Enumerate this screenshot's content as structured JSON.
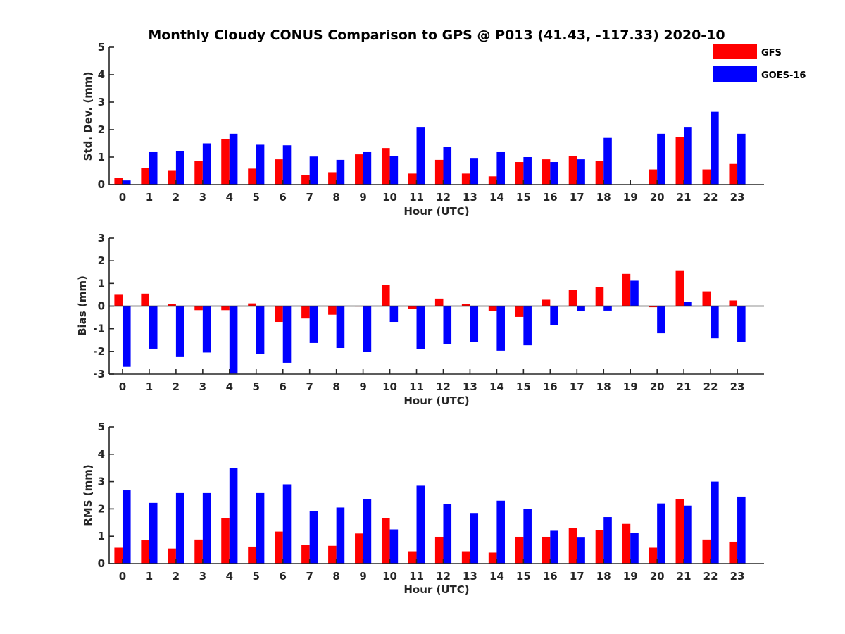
{
  "figure": {
    "title": "Monthly Cloudy CONUS Comparison to GPS @ P013 (41.43, -117.33) 2020-10"
  },
  "legend": {
    "placement": "top-right",
    "items": [
      {
        "label": "GFS",
        "color": "#ff0000"
      },
      {
        "label": "GOES-16",
        "color": "#0000ff"
      }
    ]
  },
  "chart_data": [
    {
      "type": "bar",
      "xlabel": "Hour (UTC)",
      "ylabel": "Std. Dev. (mm)",
      "ylim": [
        0,
        5
      ],
      "yticks": [
        0,
        1,
        2,
        3,
        4,
        5
      ],
      "categories": [
        "0",
        "1",
        "2",
        "3",
        "4",
        "5",
        "6",
        "7",
        "8",
        "9",
        "10",
        "11",
        "12",
        "13",
        "14",
        "15",
        "16",
        "17",
        "18",
        "19",
        "20",
        "21",
        "22",
        "23"
      ],
      "series": [
        {
          "name": "GFS",
          "color": "#ff0000",
          "values": [
            0.25,
            0.6,
            0.5,
            0.85,
            1.65,
            0.58,
            0.92,
            0.35,
            0.45,
            1.1,
            1.33,
            0.4,
            0.9,
            0.4,
            0.3,
            0.82,
            0.92,
            1.05,
            0.87,
            null,
            0.55,
            1.72,
            0.55,
            0.75
          ]
        },
        {
          "name": "GOES-16",
          "color": "#0000ff",
          "values": [
            0.15,
            1.18,
            1.22,
            1.5,
            1.85,
            1.45,
            1.43,
            1.02,
            0.9,
            1.18,
            1.05,
            2.1,
            1.38,
            0.97,
            1.18,
            1.0,
            0.82,
            0.92,
            1.7,
            null,
            1.85,
            2.1,
            2.65,
            1.85
          ]
        }
      ]
    },
    {
      "type": "bar",
      "xlabel": "Hour (UTC)",
      "ylabel": "Bias (mm)",
      "ylim": [
        -3,
        3
      ],
      "yticks": [
        -3,
        -2,
        -1,
        0,
        1,
        2,
        3
      ],
      "zero_line": true,
      "categories": [
        "0",
        "1",
        "2",
        "3",
        "4",
        "5",
        "6",
        "7",
        "8",
        "9",
        "10",
        "11",
        "12",
        "13",
        "14",
        "15",
        "16",
        "17",
        "18",
        "19",
        "20",
        "21",
        "22",
        "23"
      ],
      "series": [
        {
          "name": "GFS",
          "color": "#ff0000",
          "values": [
            0.5,
            0.55,
            0.1,
            -0.18,
            -0.18,
            0.12,
            -0.7,
            -0.55,
            -0.38,
            0.0,
            0.92,
            -0.12,
            0.33,
            0.1,
            -0.22,
            -0.48,
            0.28,
            0.7,
            0.85,
            1.42,
            -0.05,
            1.58,
            0.65,
            0.25
          ]
        },
        {
          "name": "GOES-16",
          "color": "#0000ff",
          "values": [
            -2.68,
            -1.88,
            -2.25,
            -2.05,
            -2.98,
            -2.12,
            -2.5,
            -1.63,
            -1.85,
            -2.03,
            -0.7,
            -1.9,
            -1.67,
            -1.57,
            -1.97,
            -1.73,
            -0.85,
            -0.22,
            -0.2,
            1.12,
            -1.2,
            0.18,
            -1.42,
            -1.6
          ]
        }
      ]
    },
    {
      "type": "bar",
      "xlabel": "Hour (UTC)",
      "ylabel": "RMS (mm)",
      "ylim": [
        0,
        5
      ],
      "yticks": [
        0,
        1,
        2,
        3,
        4,
        5
      ],
      "categories": [
        "0",
        "1",
        "2",
        "3",
        "4",
        "5",
        "6",
        "7",
        "8",
        "9",
        "10",
        "11",
        "12",
        "13",
        "14",
        "15",
        "16",
        "17",
        "18",
        "19",
        "20",
        "21",
        "22",
        "23"
      ],
      "series": [
        {
          "name": "GFS",
          "color": "#ff0000",
          "values": [
            0.58,
            0.85,
            0.55,
            0.88,
            1.65,
            0.62,
            1.17,
            0.67,
            0.65,
            1.1,
            1.65,
            0.45,
            0.98,
            0.45,
            0.4,
            0.98,
            0.98,
            1.3,
            1.22,
            1.45,
            0.58,
            2.35,
            0.88,
            0.8
          ]
        },
        {
          "name": "GOES-16",
          "color": "#0000ff",
          "values": [
            2.68,
            2.22,
            2.58,
            2.58,
            3.5,
            2.58,
            2.9,
            1.93,
            2.05,
            2.35,
            1.25,
            2.85,
            2.17,
            1.85,
            2.3,
            2.0,
            1.2,
            0.95,
            1.7,
            1.13,
            2.2,
            2.12,
            3.0,
            2.45
          ]
        }
      ]
    }
  ]
}
